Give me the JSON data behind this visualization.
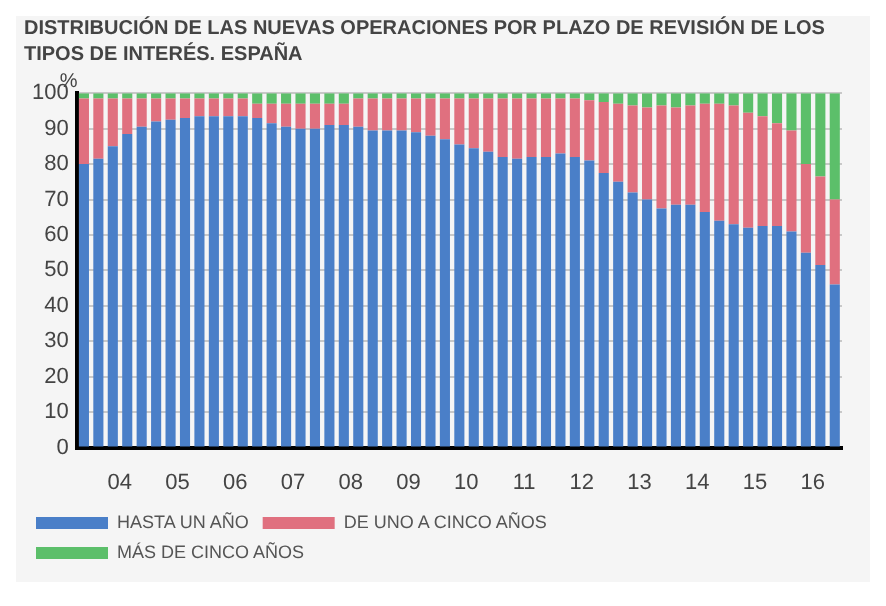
{
  "chart_data": {
    "type": "bar",
    "title": "DISTRIBUCIÓN DE LAS NUEVAS OPERACIONES POR PLAZO DE REVISIÓN DE LOS TIPOS DE INTERÉS. ESPAÑA",
    "ylabel": "%",
    "stacked": true,
    "categories": [
      null,
      null,
      "04",
      null,
      null,
      null,
      "05",
      null,
      null,
      null,
      "06",
      null,
      null,
      null,
      "07",
      null,
      null,
      null,
      "08",
      null,
      null,
      null,
      "09",
      null,
      null,
      null,
      "10",
      null,
      null,
      null,
      "11",
      null,
      null,
      null,
      "12",
      null,
      null,
      null,
      "13",
      null,
      null,
      null,
      "14",
      null,
      null,
      null,
      "15",
      null,
      null,
      null,
      "16",
      null,
      null
    ],
    "series": [
      {
        "name": "HASTA UN AÑO",
        "color": "#4a7fc8",
        "values": [
          80,
          81.5,
          85,
          88.5,
          90.5,
          92,
          92.5,
          93,
          93.5,
          93.5,
          93.5,
          93.5,
          93,
          91.5,
          90.5,
          90,
          90,
          91,
          91,
          90.5,
          89.5,
          89.5,
          89.5,
          89,
          88,
          87,
          85.5,
          84.5,
          83.5,
          82,
          81.5,
          82,
          82,
          83,
          82,
          81,
          77.5,
          75,
          72,
          70,
          67.5,
          68.5,
          68.5,
          66.5,
          64,
          63,
          62,
          62.5,
          62.5,
          61,
          55,
          51.5,
          46
        ]
      },
      {
        "name": "DE UNO A CINCO AÑOS",
        "color": "#e0707f",
        "values": [
          18.5,
          17,
          13.5,
          10,
          8,
          6.5,
          6,
          5.5,
          5,
          5,
          5,
          5,
          4,
          5.5,
          6.5,
          7,
          7,
          6,
          6,
          8,
          9,
          9,
          9,
          9.5,
          10.5,
          11.5,
          13,
          14,
          15,
          16.5,
          17,
          16.5,
          16.5,
          15.5,
          16.5,
          17,
          20,
          22,
          24.5,
          26,
          29,
          27.5,
          28,
          30.5,
          33,
          33.5,
          32.5,
          31,
          29,
          28.5,
          25,
          25,
          24
        ]
      },
      {
        "name": "MÁS DE CINCO AÑOS",
        "color": "#5cbf6a",
        "values": [
          1.5,
          1.5,
          1.5,
          1.5,
          1.5,
          1.5,
          1.5,
          1.5,
          1.5,
          1.5,
          1.5,
          1.5,
          3,
          3,
          3,
          3,
          3,
          3,
          3,
          1.5,
          1.5,
          1.5,
          1.5,
          1.5,
          1.5,
          1.5,
          1.5,
          1.5,
          1.5,
          1.5,
          1.5,
          1.5,
          1.5,
          1.5,
          1.5,
          2,
          2.5,
          3,
          3.5,
          4,
          3.5,
          4,
          3.5,
          3,
          3,
          3.5,
          5.5,
          6.5,
          8.5,
          10.5,
          20,
          23.5,
          30
        ]
      }
    ],
    "ylim": [
      0,
      100
    ],
    "yticks": [
      0,
      10,
      20,
      30,
      40,
      50,
      60,
      70,
      80,
      90,
      100
    ],
    "grid": "y",
    "legend": "bottom"
  }
}
